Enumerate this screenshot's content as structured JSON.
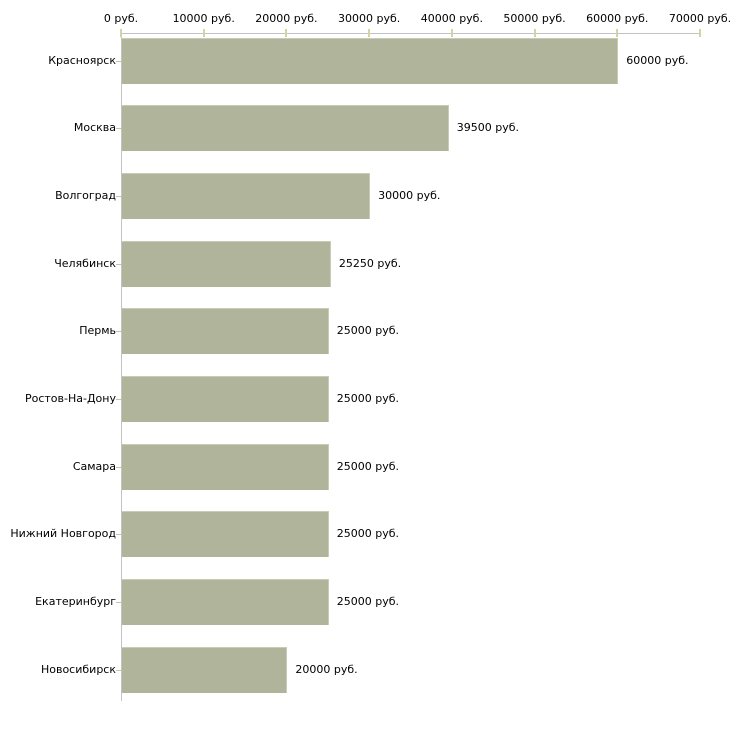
{
  "chart_data": {
    "type": "bar",
    "orientation": "horizontal",
    "title": "",
    "xlabel": "",
    "ylabel": "",
    "categories": [
      "Красноярск",
      "Москва",
      "Волгоград",
      "Челябинск",
      "Пермь",
      "Ростов-На-Дону",
      "Самара",
      "Нижний Новгород",
      "Екатеринбург",
      "Новосибирск"
    ],
    "values": [
      60000,
      39500,
      30000,
      25250,
      25000,
      25000,
      25000,
      25000,
      25000,
      20000
    ],
    "value_labels": [
      "60000 руб.",
      "39500 руб.",
      "30000 руб.",
      "25250 руб.",
      "25000 руб.",
      "25000 руб.",
      "25000 руб.",
      "25000 руб.",
      "25000 руб.",
      "20000 руб."
    ],
    "x_axis": {
      "position": "top",
      "min": 0,
      "max": 70000,
      "step": 10000,
      "tick_labels": [
        "0 руб.",
        "10000 руб.",
        "20000 руб.",
        "30000 руб.",
        "40000 руб.",
        "50000 руб.",
        "60000 руб.",
        "70000 руб."
      ]
    },
    "grid": false,
    "legend": false,
    "colors": {
      "bar_fill": "#afb49a",
      "bar_edge": "#c9ccb4",
      "axis_line": "#c3c3c3",
      "axis_tick": "#d8d2a2",
      "text": "#000000",
      "background": "#ffffff"
    }
  }
}
